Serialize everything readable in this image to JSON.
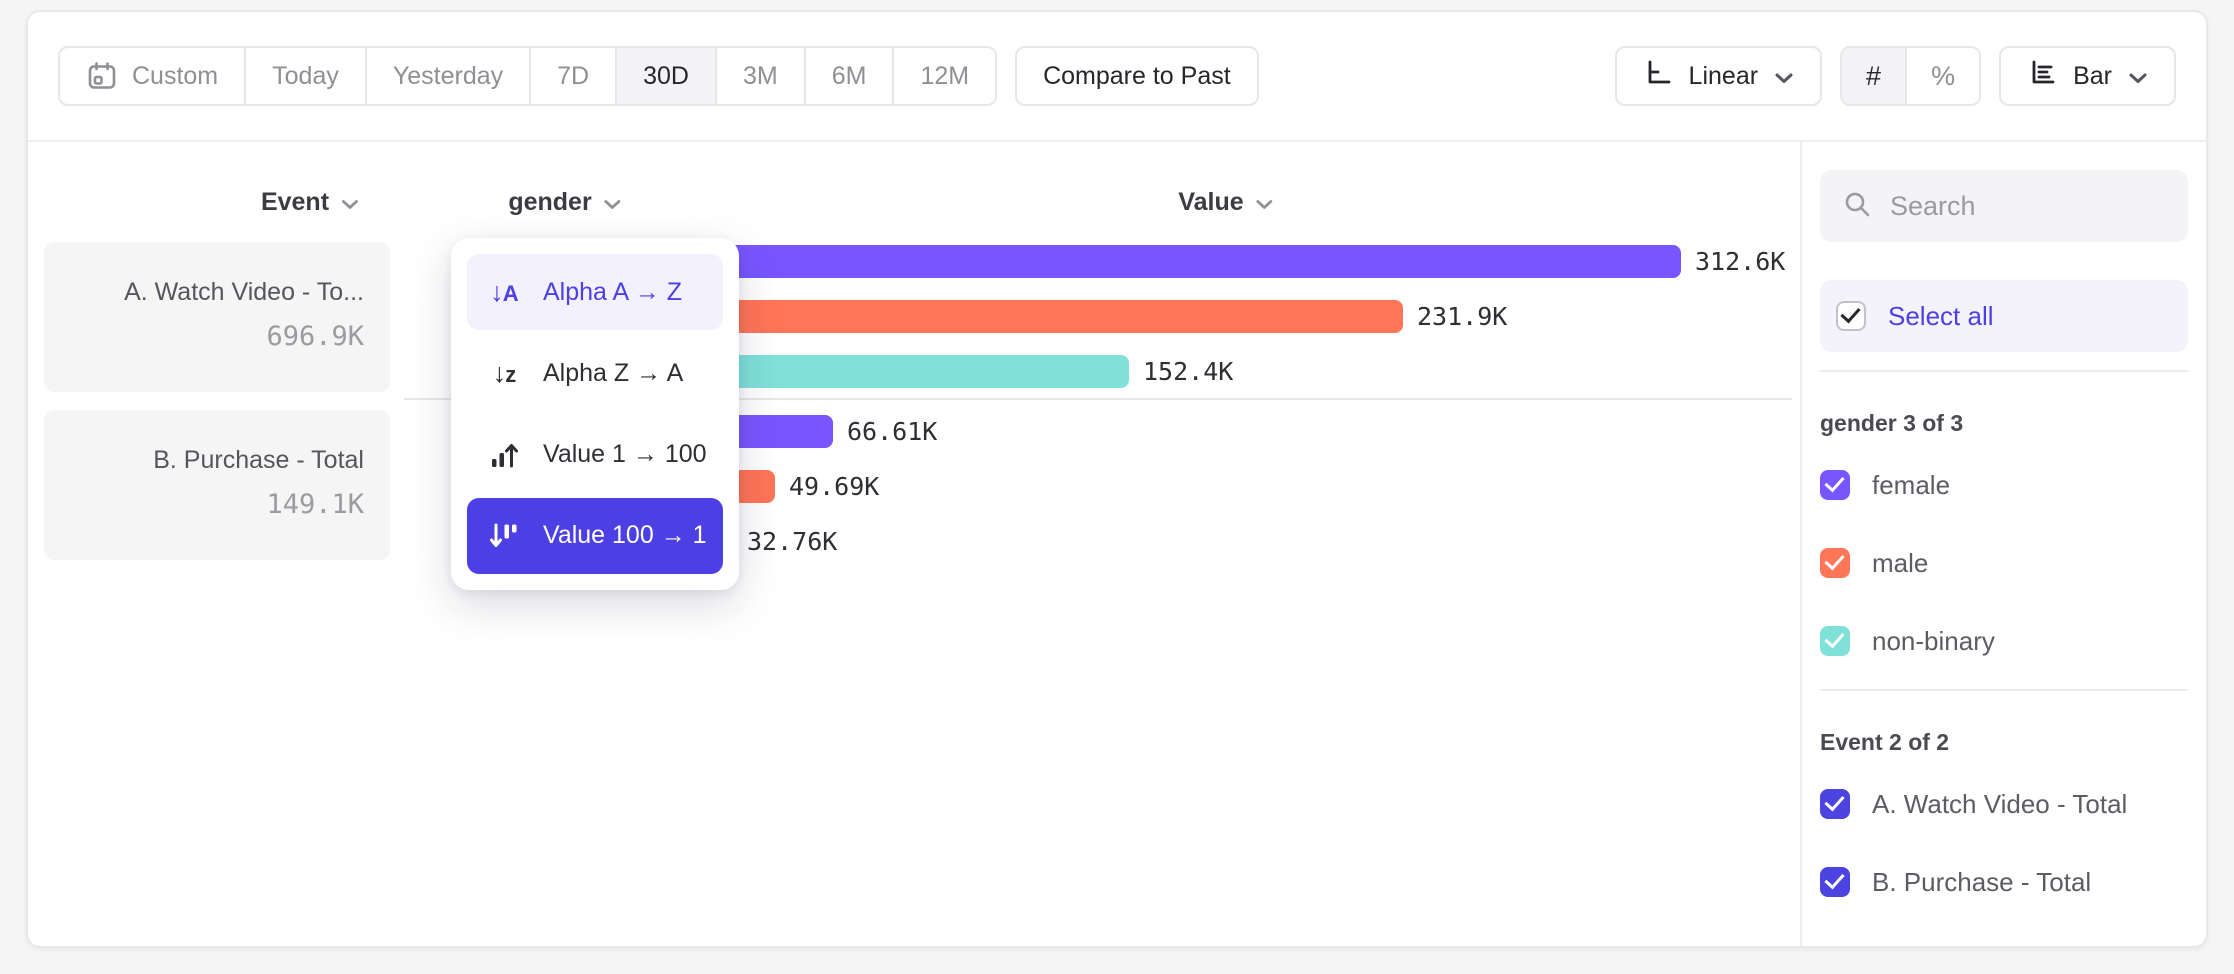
{
  "toolbar": {
    "date_ranges": [
      "Custom",
      "Today",
      "Yesterday",
      "7D",
      "30D",
      "3M",
      "6M",
      "12M"
    ],
    "active_range": "30D",
    "compare_label": "Compare to Past",
    "scale_label": "Linear",
    "count_label": "#",
    "percent_label": "%",
    "value_format_active": "#",
    "chart_type_label": "Bar"
  },
  "columns": {
    "event": "Event",
    "breakdown": "gender",
    "value": "Value"
  },
  "events": [
    {
      "title": "A. Watch Video - To...",
      "total": "696.9K"
    },
    {
      "title": "B. Purchase - Total",
      "total": "149.1K"
    }
  ],
  "sort_menu": {
    "items": [
      {
        "label": "Alpha A → Z",
        "icon": "sort-alpha-ascending-icon",
        "state": "hover"
      },
      {
        "label": "Alpha Z → A",
        "icon": "sort-alpha-descending-icon",
        "state": "normal"
      },
      {
        "label": "Value 1 → 100",
        "icon": "sort-value-ascending-icon",
        "state": "normal"
      },
      {
        "label": "Value 100 → 1",
        "icon": "sort-value-descending-icon",
        "state": "selected"
      }
    ]
  },
  "chart_data": {
    "type": "bar",
    "orientation": "horizontal",
    "series_by": "gender",
    "sort": "Value 100 → 1",
    "value_axis_label": "Value",
    "groups": [
      {
        "event": "A. Watch Video - Total",
        "total": "696.9K",
        "bars": [
          {
            "segment": "female",
            "value": 312600,
            "label": "312.6K",
            "color": "#7856FF"
          },
          {
            "segment": "male",
            "value": 231900,
            "label": "231.9K",
            "color": "#FF7557"
          },
          {
            "segment": "non-binary",
            "value": 152400,
            "label": "152.4K",
            "color": "#80E1D9"
          }
        ]
      },
      {
        "event": "B. Purchase - Total",
        "total": "149.1K",
        "bars": [
          {
            "segment": "female",
            "value": 66610,
            "label": "66.61K",
            "color": "#7856FF"
          },
          {
            "segment": "male",
            "value": 49690,
            "label": "49.69K",
            "color": "#FF7557"
          },
          {
            "segment": "non-binary",
            "value": 32760,
            "label": "32.76K",
            "color": "#80E1D9"
          }
        ]
      }
    ]
  },
  "sidebar": {
    "search_placeholder": "Search",
    "select_all_label": "Select all",
    "sections": [
      {
        "header": "gender 3 of 3",
        "items": [
          {
            "label": "female",
            "color": "#7856FF",
            "checked": true
          },
          {
            "label": "male",
            "color": "#FF7557",
            "checked": true
          },
          {
            "label": "non-binary",
            "color": "#80E1D9",
            "checked": true
          }
        ]
      },
      {
        "header": "Event 2 of 2",
        "items": [
          {
            "label": "A. Watch Video - Total",
            "color": "#4C43E0",
            "checked": true
          },
          {
            "label": "B. Purchase - Total",
            "color": "#4C43E0",
            "checked": true
          }
        ]
      }
    ]
  },
  "colors": {
    "accent": "#4C40E4",
    "chart_purple": "#7856FF",
    "chart_orange": "#FF7557",
    "chart_teal": "#80E1D9",
    "hover_row_bg": "#F3F1FD"
  }
}
